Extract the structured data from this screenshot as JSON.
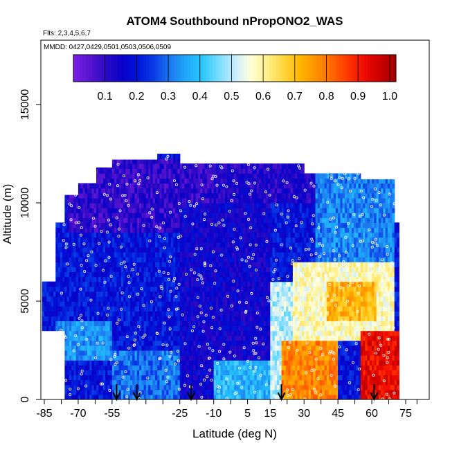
{
  "chart_data": {
    "type": "heatmap",
    "title": "ATOM4 Southbound nPropONO2_WAS",
    "subtitle_flights": "Flts: 2,3,4,5,6,7",
    "subtitle_dates": "MMDD: 0427,0429,0501,0503,0506,0509",
    "xlabel": "Latitude (deg N)",
    "ylabel": "Altitude (m)",
    "xlim": [
      -86,
      82
    ],
    "ylim": [
      0,
      17500
    ],
    "x_ticks": [
      -85,
      -70,
      -55,
      -40,
      -25,
      -10,
      5,
      15,
      30,
      45,
      60,
      75
    ],
    "x_tick_labels": [
      "-85",
      "-70",
      "-55",
      "",
      "-25",
      "-10",
      "5",
      "15",
      "30",
      "45",
      "60",
      "75"
    ],
    "x_minor_ticks": [
      -77.5,
      -62.5,
      -47.5,
      -32.5,
      -17.5,
      -2.5,
      22.5,
      37.5,
      52.5,
      67.5,
      80
    ],
    "y_ticks": [
      0,
      5000,
      10000,
      15000
    ],
    "y_tick_labels": [
      "0",
      "5000",
      "10000",
      "15000"
    ],
    "colorbar": {
      "range": [
        0,
        1.02
      ],
      "ticks": [
        0.1,
        0.2,
        0.3,
        0.4,
        0.5,
        0.6,
        0.7,
        0.8,
        0.9,
        1.0
      ],
      "tick_labels": [
        "0.1",
        "0.2",
        "0.3",
        "0.4",
        "0.5",
        "0.6",
        "0.7",
        "0.8",
        "0.9",
        "1.0"
      ],
      "colors": [
        "#7a20e8",
        "#5a14d0",
        "#2a0ac4",
        "#0a00c8",
        "#0014d8",
        "#0a3ce6",
        "#1e78f0",
        "#1ea8fa",
        "#28c8ff",
        "#78dcff",
        "#c8ecff",
        "#ffffd8",
        "#fff08c",
        "#ffd840",
        "#ffb800",
        "#ff9200",
        "#ff6a00",
        "#ff3800",
        "#f00a00",
        "#cc0000",
        "#a00000"
      ]
    },
    "arrow_latitudes": [
      -53,
      -44,
      -20,
      20,
      61
    ],
    "regions": [
      {
        "lat": [
          -80,
          -55
        ],
        "alt": [
          0,
          10400
        ],
        "value": 0.2
      },
      {
        "lat": [
          -80,
          -55
        ],
        "alt": [
          2000,
          4000
        ],
        "value": 0.34
      },
      {
        "lat": [
          -55,
          -25
        ],
        "alt": [
          0,
          2500
        ],
        "value": 0.3
      },
      {
        "lat": [
          -55,
          -25
        ],
        "alt": [
          2500,
          9000
        ],
        "value": 0.2
      },
      {
        "lat": [
          -75,
          -10
        ],
        "alt": [
          8500,
          12200
        ],
        "value": 0.1
      },
      {
        "lat": [
          -25,
          15
        ],
        "alt": [
          0,
          10000
        ],
        "value": 0.15
      },
      {
        "lat": [
          -10,
          15
        ],
        "alt": [
          0,
          2000
        ],
        "value": 0.38
      },
      {
        "lat": [
          -10,
          40
        ],
        "alt": [
          10000,
          12000
        ],
        "value": 0.12
      },
      {
        "lat": [
          15,
          35
        ],
        "alt": [
          0,
          6000
        ],
        "value": 0.5
      },
      {
        "lat": [
          20,
          45
        ],
        "alt": [
          0,
          3000
        ],
        "value": 0.78
      },
      {
        "lat": [
          25,
          70
        ],
        "alt": [
          3000,
          7000
        ],
        "value": 0.58
      },
      {
        "lat": [
          40,
          62
        ],
        "alt": [
          4000,
          5800
        ],
        "value": 0.72
      },
      {
        "lat": [
          55,
          72
        ],
        "alt": [
          0,
          3500
        ],
        "value": 0.93
      },
      {
        "lat": [
          35,
          70
        ],
        "alt": [
          7000,
          11500
        ],
        "value": 0.32
      }
    ]
  }
}
